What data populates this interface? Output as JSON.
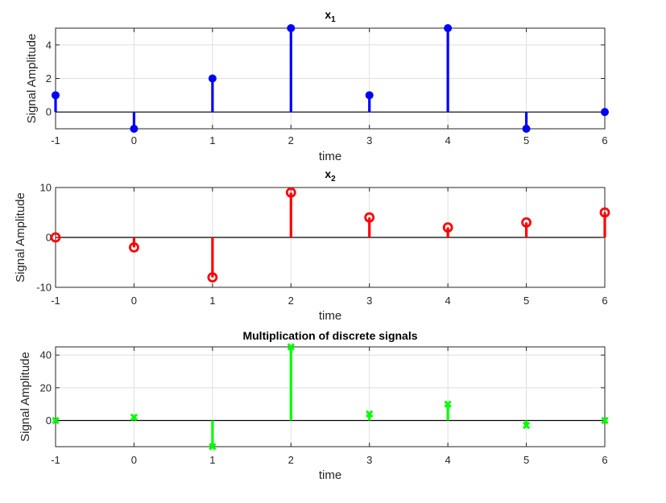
{
  "chart_data": [
    {
      "type": "stem",
      "title": "x",
      "title_subscript": "1",
      "xlabel": "time",
      "ylabel": "Signal Amplitude",
      "xlim": [
        -1,
        6
      ],
      "ylim": [
        -1,
        5
      ],
      "xticks": [
        "-1",
        "0",
        "1",
        "2",
        "3",
        "4",
        "5",
        "6"
      ],
      "yticks": [
        "0",
        "2",
        "4"
      ],
      "grid": true,
      "color": "#0000ff",
      "marker": "filled-circle",
      "x": [
        -1,
        0,
        1,
        2,
        3,
        4,
        5,
        6
      ],
      "values": [
        1,
        -1,
        2,
        5,
        1,
        5,
        -1,
        0
      ]
    },
    {
      "type": "stem",
      "title": "x",
      "title_subscript": "2",
      "xlabel": "time",
      "ylabel": "Signal Amplitude",
      "xlim": [
        -1,
        6
      ],
      "ylim": [
        -10,
        10
      ],
      "xticks": [
        "-1",
        "0",
        "1",
        "2",
        "3",
        "4",
        "5",
        "6"
      ],
      "yticks": [
        "-10",
        "0",
        "10"
      ],
      "grid": true,
      "color": "#ff0000",
      "marker": "open-circle",
      "x": [
        -1,
        0,
        1,
        2,
        3,
        4,
        5,
        6
      ],
      "values": [
        0,
        -2,
        -8,
        9,
        4,
        2,
        3,
        5
      ]
    },
    {
      "type": "stem",
      "title": "Multiplication of discrete signals",
      "title_subscript": "",
      "xlabel": "time",
      "ylabel": "Signal Amplitude",
      "xlim": [
        -1,
        6
      ],
      "ylim": [
        -16,
        45
      ],
      "xticks": [
        "-1",
        "0",
        "1",
        "2",
        "3",
        "4",
        "5",
        "6"
      ],
      "yticks": [
        "0",
        "20",
        "40"
      ],
      "grid": true,
      "color": "#00ff00",
      "marker": "x",
      "x": [
        -1,
        0,
        1,
        2,
        3,
        4,
        5,
        6
      ],
      "values": [
        0,
        2,
        -16,
        45,
        4,
        10,
        -3,
        0
      ]
    }
  ]
}
